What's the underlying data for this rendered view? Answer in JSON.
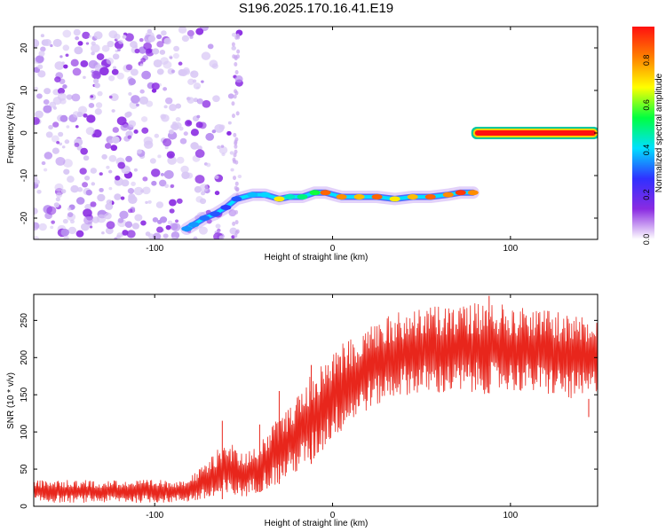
{
  "title": "S196.2025.170.16.41.E19",
  "chart_data": [
    {
      "type": "heatmap",
      "xlabel": "Height of straight line (km)",
      "ylabel": "Frequency (Hz)",
      "xlim": [
        -168,
        149
      ],
      "ylim": [
        -25,
        25
      ],
      "x_ticks": [
        -100,
        0,
        100
      ],
      "y_ticks": [
        -20,
        -10,
        0,
        10,
        20
      ],
      "colorbar": {
        "label": "Normalized spectral amplitude",
        "range": [
          0,
          0.95
        ],
        "ticks": [
          "0.0",
          "0.2",
          "0.4",
          "0.6",
          "0.8"
        ],
        "colors": [
          "#ffffff",
          "#8a2be2",
          "#3030ff",
          "#00e0ff",
          "#00ff40",
          "#ffff00",
          "#ff8000",
          "#ff1010"
        ]
      },
      "noise_region_x": [
        -168,
        -52
      ],
      "ridge": [
        {
          "x": -82,
          "y": -22.5,
          "amp": 0.35
        },
        {
          "x": -78,
          "y": -21.5,
          "amp": 0.35
        },
        {
          "x": -72,
          "y": -20.0,
          "amp": 0.32
        },
        {
          "x": -66,
          "y": -19.0,
          "amp": 0.3
        },
        {
          "x": -60,
          "y": -17.5,
          "amp": 0.28
        },
        {
          "x": -54,
          "y": -15.5,
          "amp": 0.3
        },
        {
          "x": -45,
          "y": -14.5,
          "amp": 0.38
        },
        {
          "x": -38,
          "y": -14.5,
          "amp": 0.4
        },
        {
          "x": -30,
          "y": -15.5,
          "amp": 0.7
        },
        {
          "x": -24,
          "y": -15.0,
          "amp": 0.45
        },
        {
          "x": -17,
          "y": -15.0,
          "amp": 0.5
        },
        {
          "x": -10,
          "y": -14.0,
          "amp": 0.55
        },
        {
          "x": -4,
          "y": -14.0,
          "amp": 0.85
        },
        {
          "x": 5,
          "y": -15.0,
          "amp": 0.8
        },
        {
          "x": 15,
          "y": -15.0,
          "amp": 0.75
        },
        {
          "x": 25,
          "y": -15.0,
          "amp": 0.85
        },
        {
          "x": 35,
          "y": -15.5,
          "amp": 0.7
        },
        {
          "x": 45,
          "y": -15.0,
          "amp": 0.75
        },
        {
          "x": 55,
          "y": -15.0,
          "amp": 0.85
        },
        {
          "x": 65,
          "y": -14.5,
          "amp": 0.8
        },
        {
          "x": 72,
          "y": -14.0,
          "amp": 0.9
        },
        {
          "x": 79,
          "y": -14.0,
          "amp": 0.8
        }
      ],
      "line_segment": {
        "x_start": 79,
        "x_end": 149,
        "y": 0,
        "amp": 0.95
      }
    },
    {
      "type": "line",
      "xlabel": "Height of straight line (km)",
      "ylabel": "SNR (10 * v/v)",
      "xlim": [
        -168,
        149
      ],
      "ylim": [
        0,
        285
      ],
      "x_ticks": [
        -100,
        0,
        100
      ],
      "y_ticks": [
        0,
        50,
        100,
        150,
        200,
        250
      ],
      "color": "#e8261c",
      "envelope": {
        "x": [
          -168,
          -120,
          -90,
          -80,
          -70,
          -60,
          -50,
          -40,
          -30,
          -20,
          -10,
          0,
          10,
          20,
          30,
          40,
          60,
          80,
          100,
          120,
          140,
          149
        ],
        "low": [
          5,
          5,
          5,
          6,
          8,
          10,
          12,
          20,
          30,
          45,
          60,
          90,
          110,
          130,
          140,
          150,
          150,
          150,
          155,
          150,
          140,
          150
        ],
        "high": [
          35,
          35,
          35,
          40,
          60,
          90,
          70,
          90,
          120,
          150,
          185,
          210,
          225,
          245,
          255,
          265,
          270,
          275,
          270,
          265,
          255,
          255
        ]
      },
      "spikes": [
        {
          "x": -62,
          "y": 115
        },
        {
          "x": -41,
          "y": 110
        },
        {
          "x": -30,
          "y": 155
        },
        {
          "x": -12,
          "y": 190
        },
        {
          "x": 88,
          "y": 283
        },
        {
          "x": 144,
          "y": 120
        }
      ]
    }
  ]
}
